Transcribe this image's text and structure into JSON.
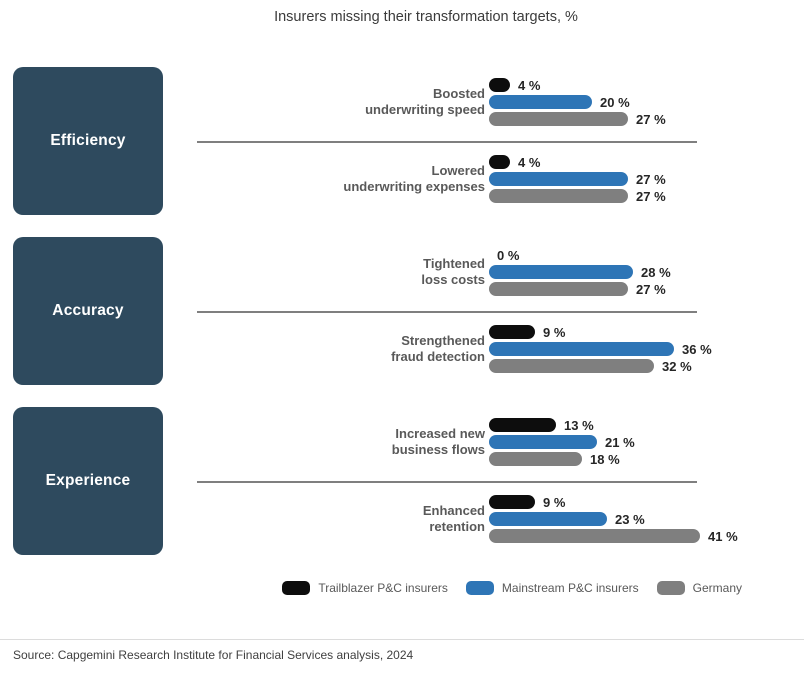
{
  "title": "Insurers missing their transformation targets, %",
  "source": "Source: Capgemini Research Institute for Financial Services analysis, 2024",
  "value_suffix": " %",
  "colors": {
    "trailblazer": "#0d0d0d",
    "mainstream": "#2e75b6",
    "germany": "#7f7f7f",
    "category_box": "#2e4a5e",
    "label_text": "#595959",
    "value_text": "#262626"
  },
  "legend": [
    {
      "label": "Trailblazer P&C insurers",
      "color": "#0d0d0d"
    },
    {
      "label": "Mainstream P&C insurers",
      "color": "#2e75b6"
    },
    {
      "label": "Germany",
      "color": "#7f7f7f"
    }
  ],
  "chart_data": {
    "type": "bar",
    "orientation": "horizontal",
    "title": "Insurers missing their transformation targets, %",
    "unit": "%",
    "xlim": [
      0,
      45
    ],
    "grid": false,
    "legend_position": "bottom",
    "series_names": [
      "Trailblazer P&C insurers",
      "Mainstream P&C insurers",
      "Germany"
    ],
    "sections": [
      {
        "category": "Efficiency",
        "groups": [
          {
            "label": "Boosted underwriting speed",
            "label_lines": [
              "Boosted",
              "underwriting speed"
            ],
            "values": [
              4,
              20,
              27
            ]
          },
          {
            "label": "Lowered underwriting expenses",
            "label_lines": [
              "Lowered",
              "underwriting expenses"
            ],
            "values": [
              4,
              27,
              27
            ]
          }
        ]
      },
      {
        "category": "Accuracy",
        "groups": [
          {
            "label": "Tightened loss costs",
            "label_lines": [
              "Tightened",
              "loss costs"
            ],
            "values": [
              0,
              28,
              27
            ]
          },
          {
            "label": "Strengthened fraud detection",
            "label_lines": [
              "Strengthened",
              "fraud detection"
            ],
            "values": [
              9,
              36,
              32
            ]
          }
        ]
      },
      {
        "category": "Experience",
        "groups": [
          {
            "label": "Increased new business flows",
            "label_lines": [
              "Increased new",
              "business flows"
            ],
            "values": [
              13,
              21,
              18
            ]
          },
          {
            "label": "Enhanced retention",
            "label_lines": [
              "Enhanced",
              "retention"
            ],
            "values": [
              9,
              23,
              41
            ]
          }
        ]
      }
    ]
  }
}
